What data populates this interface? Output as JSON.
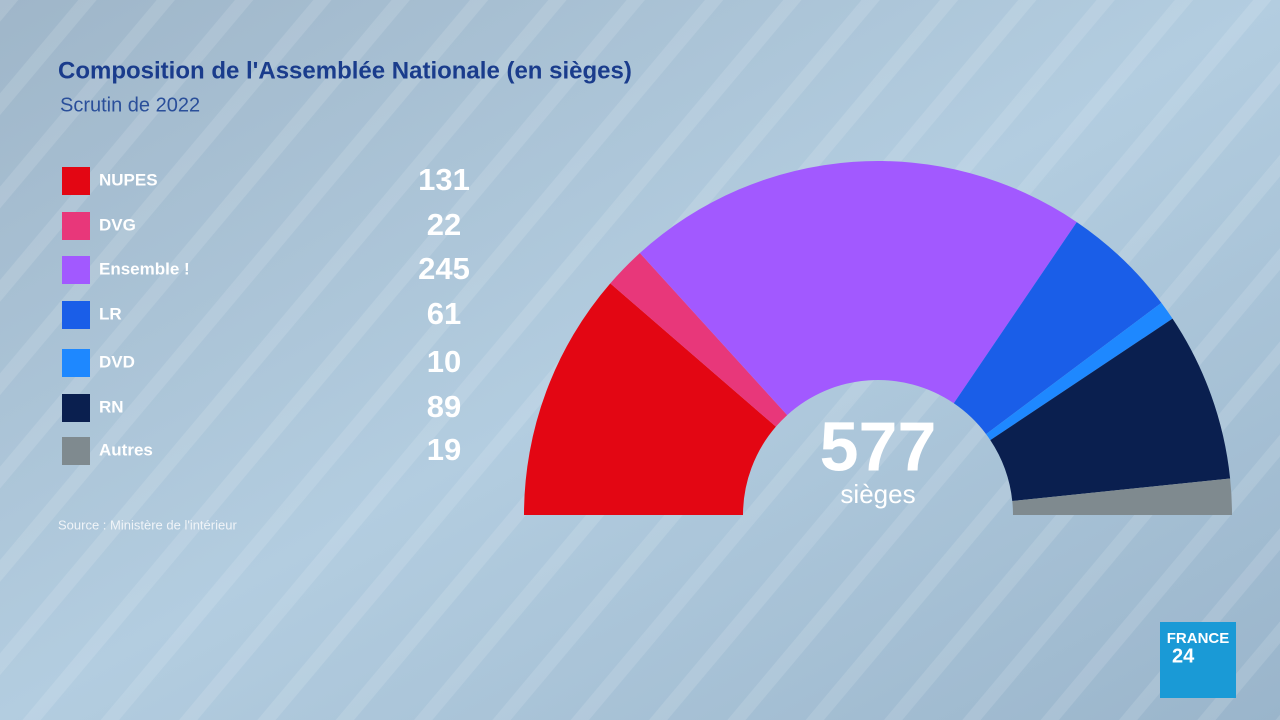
{
  "chart_data": {
    "type": "parliament",
    "title": "Composition de l'Assemblée Nationale (en sièges)",
    "subtitle": "Scrutin de 2022",
    "categories": [
      "NUPES",
      "DVG",
      "Ensemble !",
      "LR",
      "DVD",
      "RN",
      "Autres"
    ],
    "values": [
      131,
      22,
      245,
      61,
      10,
      89,
      19
    ],
    "colors": [
      "#e30613",
      "#e8377a",
      "#a259ff",
      "#1a5ee8",
      "#1e88ff",
      "#0a1f4f",
      "#7f8a8f"
    ],
    "total": 577,
    "total_label": "sièges",
    "source": "Source : Ministère de l'intérieur",
    "logo": [
      "FRANCE",
      "24"
    ]
  }
}
